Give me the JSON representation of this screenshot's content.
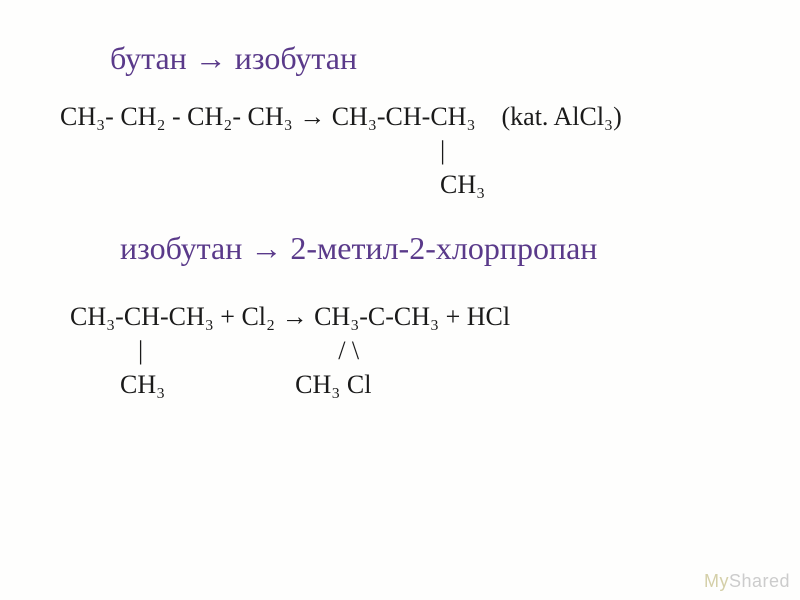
{
  "slide": {
    "background_color": "#fefefd",
    "title_color": "#5a3a8a",
    "text_color": "#1a1a1a",
    "title_fontsize": 32,
    "equation_fontsize": 26
  },
  "reaction1": {
    "title": "бутан → изобутан",
    "eq_line1": "CH₃- CH₂ - CH₂- CH₃ → CH₃-CH-CH₃    (kat. AlCl₃)",
    "eq_line2": "|",
    "eq_line3": "CH₃"
  },
  "reaction2": {
    "title": "изобутан → 2-метил-2-хлорпропан",
    "eq_line1": "CH₃-CH-CH₃ + Cl₂ → CH₃-C-CH₃ + HCl",
    "eq_line2": "|                              / \\",
    "eq_line3": "CH₃                    CH₃ Cl"
  },
  "watermark": {
    "part1": "My",
    "part2": "Shared"
  }
}
